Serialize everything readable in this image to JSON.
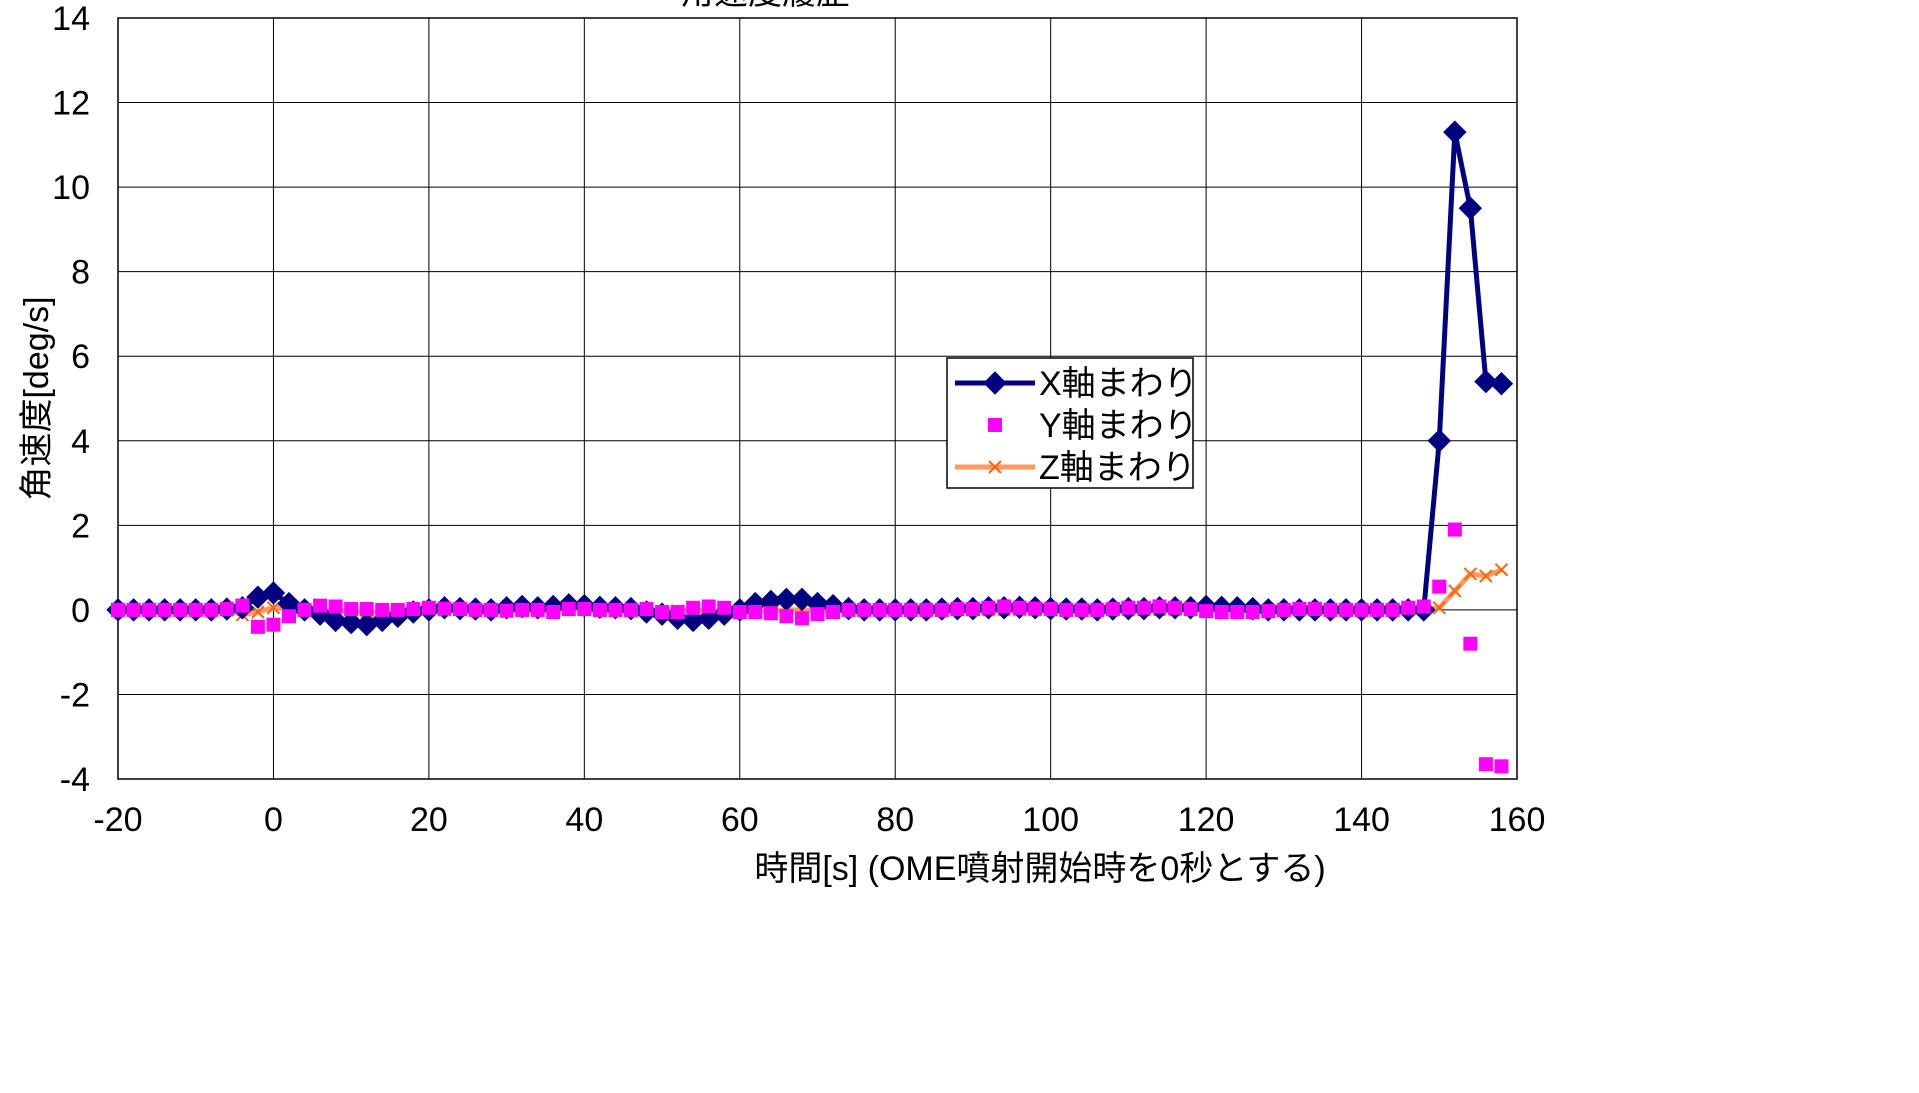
{
  "chart_data": {
    "type": "line",
    "title": "角速度履歴",
    "xlabel": "時間[s] (OME噴射開始時を0秒とする)",
    "ylabel": "角速度[deg/s]",
    "xlim": [
      -20,
      160
    ],
    "ylim": [
      -4,
      14
    ],
    "xticks": [
      -20,
      0,
      20,
      40,
      60,
      80,
      100,
      120,
      140,
      160
    ],
    "yticks": [
      -4,
      -2,
      0,
      2,
      4,
      6,
      8,
      10,
      12,
      14
    ],
    "grid": true,
    "legend_position": "center-right",
    "x": [
      -20,
      -18,
      -16,
      -14,
      -12,
      -10,
      -8,
      -6,
      -4,
      -2,
      0,
      2,
      4,
      6,
      8,
      10,
      12,
      14,
      16,
      18,
      20,
      22,
      24,
      26,
      28,
      30,
      32,
      34,
      36,
      38,
      40,
      42,
      44,
      46,
      48,
      50,
      52,
      54,
      56,
      58,
      60,
      62,
      64,
      66,
      68,
      70,
      72,
      74,
      76,
      78,
      80,
      82,
      84,
      86,
      88,
      90,
      92,
      94,
      96,
      98,
      100,
      102,
      104,
      106,
      108,
      110,
      112,
      114,
      116,
      118,
      120,
      122,
      124,
      126,
      128,
      130,
      132,
      134,
      136,
      138,
      140,
      142,
      144,
      146,
      148,
      150,
      152,
      154,
      156,
      158
    ],
    "series": [
      {
        "name": "X軸まわり",
        "style": "line-diamond",
        "color": "#000080",
        "values": [
          0,
          0,
          0,
          0,
          0,
          0,
          0,
          0.02,
          0.05,
          0.3,
          0.4,
          0.15,
          0,
          -0.1,
          -0.25,
          -0.3,
          -0.35,
          -0.25,
          -0.15,
          -0.05,
          0,
          0.05,
          0.03,
          0.02,
          0,
          0.05,
          0.08,
          0.05,
          0.08,
          0.12,
          0.1,
          0.06,
          0.05,
          0.03,
          -0.05,
          -0.1,
          -0.2,
          -0.25,
          -0.2,
          -0.1,
          0,
          0.15,
          0.2,
          0.25,
          0.25,
          0.15,
          0.1,
          0.03,
          0,
          0,
          0,
          0,
          0,
          0.02,
          0.03,
          0.03,
          0.05,
          0.05,
          0.06,
          0.05,
          0.03,
          0.02,
          0.02,
          0,
          0.02,
          0.03,
          0.03,
          0.05,
          0.05,
          0.05,
          0.08,
          0.06,
          0.05,
          0.03,
          0,
          0,
          0,
          0,
          0,
          0,
          0,
          0,
          0,
          0,
          0,
          4.0,
          11.3,
          9.5,
          5.4,
          5.35
        ]
      },
      {
        "name": "Y軸まわり",
        "style": "marker-square",
        "color": "#FF00FF",
        "values": [
          0,
          0,
          0,
          0,
          0,
          0,
          0,
          0.02,
          0.1,
          -0.4,
          -0.35,
          -0.15,
          0,
          0.1,
          0.08,
          0.02,
          0.02,
          0,
          0,
          0.02,
          0.05,
          0.03,
          0.02,
          0,
          0,
          -0.02,
          0,
          0,
          -0.05,
          0.02,
          0.02,
          0,
          0,
          0,
          0.02,
          -0.05,
          -0.05,
          0.05,
          0.08,
          0.05,
          -0.05,
          -0.05,
          -0.08,
          -0.15,
          -0.2,
          -0.1,
          -0.05,
          0,
          0,
          0,
          0,
          0,
          0,
          0,
          0.02,
          0.02,
          0.05,
          0.08,
          0.05,
          0.03,
          0.02,
          0,
          0,
          0,
          0.02,
          0.05,
          0.05,
          0.08,
          0.05,
          0.02,
          -0.03,
          -0.05,
          -0.05,
          -0.05,
          -0.03,
          0,
          0.02,
          0.02,
          0,
          0,
          0,
          0,
          0,
          0.05,
          0.08,
          0.55,
          1.9,
          -0.8,
          -3.65,
          -3.7
        ]
      },
      {
        "name": "Z軸まわり",
        "style": "line-x",
        "color": "#FF9966",
        "values": [
          0,
          0,
          0,
          0,
          0,
          0,
          0,
          0,
          -0.12,
          -0.05,
          0.05,
          0.05,
          0,
          0,
          0,
          -0.05,
          -0.05,
          -0.05,
          -0.03,
          0,
          0.02,
          0,
          0,
          0,
          -0.02,
          -0.02,
          -0.02,
          -0.02,
          -0.02,
          0,
          0,
          -0.03,
          -0.03,
          -0.03,
          -0.03,
          -0.03,
          -0.02,
          0,
          -0.03,
          -0.03,
          -0.03,
          -0.03,
          -0.03,
          0,
          0,
          -0.03,
          -0.03,
          0,
          0,
          0,
          0,
          0,
          0,
          0,
          0,
          0,
          0,
          0,
          0,
          0,
          0,
          0,
          0,
          0,
          0,
          0,
          0,
          0,
          0,
          0,
          0,
          0,
          0,
          0,
          0,
          0,
          0,
          0,
          0,
          0,
          0,
          0,
          0,
          0,
          0,
          0.05,
          0.45,
          0.85,
          0.8,
          0.95
        ]
      }
    ]
  }
}
